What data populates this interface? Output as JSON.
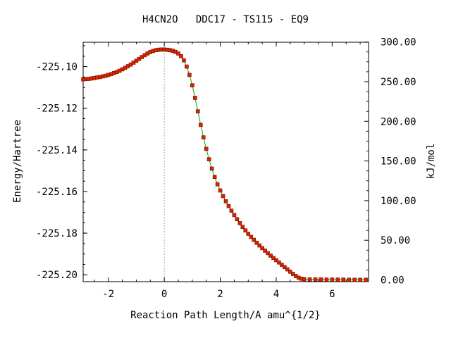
{
  "chart_data": {
    "type": "line",
    "title": "H4CN2O   DDC17 - TS115 - EQ9",
    "xlabel": "Reaction Path Length/A amu^{1/2}",
    "ylabel": "Energy/Hartree",
    "y2label": "kJ/mol",
    "xlim": [
      -2.9,
      7.3
    ],
    "ylim": [
      -225.2033,
      -225.0883
    ],
    "y2lim": [
      -2.2,
      299.7
    ],
    "x_ticks": [
      "-2",
      "0",
      "2",
      "4",
      "6"
    ],
    "x_tick_values": [
      -2,
      0,
      2,
      4,
      6
    ],
    "y_ticks": [
      "-225.10",
      "-225.12",
      "-225.14",
      "-225.16",
      "-225.18",
      "-225.20"
    ],
    "y_tick_values": [
      -225.1,
      -225.12,
      -225.14,
      -225.16,
      -225.18,
      -225.2
    ],
    "y2_ticks": [
      "300.00",
      "250.00",
      "200.00",
      "150.00",
      "100.00",
      "50.00",
      "0.00"
    ],
    "y2_tick_values": [
      300,
      250,
      200,
      150,
      100,
      50,
      0
    ],
    "ts_marker_x": 0,
    "colors": {
      "line": "#00aa00",
      "marker": "#dd2200",
      "marker_edge": "#661100",
      "ts_line": "#aaaaaa"
    },
    "series": [
      {
        "x": [
          -2.9,
          -2.8,
          -2.7,
          -2.6,
          -2.5,
          -2.4,
          -2.3,
          -2.2,
          -2.1,
          -2.0,
          -1.9,
          -1.8,
          -1.7,
          -1.6,
          -1.5,
          -1.4,
          -1.3,
          -1.2,
          -1.1,
          -1.0,
          -0.9,
          -0.8,
          -0.7,
          -0.6,
          -0.5,
          -0.4,
          -0.3,
          -0.2,
          -0.1,
          0.0,
          0.1,
          0.2,
          0.3,
          0.4,
          0.5,
          0.6,
          0.7,
          0.8,
          0.9,
          1.0,
          1.1,
          1.2,
          1.3,
          1.4,
          1.5,
          1.6,
          1.7,
          1.8,
          1.9,
          2.0,
          2.1,
          2.2,
          2.3,
          2.4,
          2.5,
          2.6,
          2.7,
          2.8,
          2.9,
          3.0,
          3.1,
          3.2,
          3.3,
          3.4,
          3.5,
          3.6,
          3.7,
          3.8,
          3.9,
          4.0,
          4.1,
          4.2,
          4.3,
          4.4,
          4.5,
          4.6,
          4.7,
          4.8,
          4.9,
          5.0,
          5.2,
          5.4,
          5.6,
          5.8,
          6.0,
          6.2,
          6.4,
          6.6,
          6.8,
          7.0,
          7.2
        ],
        "y": [
          -225.1061,
          -225.106,
          -225.1059,
          -225.1057,
          -225.1055,
          -225.1052,
          -225.105,
          -225.1047,
          -225.1044,
          -225.104,
          -225.1036,
          -225.1031,
          -225.1026,
          -225.102,
          -225.1013,
          -225.1006,
          -225.0998,
          -225.099,
          -225.0981,
          -225.0972,
          -225.0963,
          -225.0954,
          -225.0945,
          -225.0937,
          -225.093,
          -225.0925,
          -225.0921,
          -225.0919,
          -225.0918,
          -225.0918,
          -225.0919,
          -225.0921,
          -225.0924,
          -225.0929,
          -225.0937,
          -225.095,
          -225.097,
          -225.1,
          -225.104,
          -225.109,
          -225.115,
          -225.1215,
          -225.128,
          -225.134,
          -225.1395,
          -225.1445,
          -225.149,
          -225.153,
          -225.1565,
          -225.1595,
          -225.1622,
          -225.1647,
          -225.167,
          -225.1692,
          -225.1713,
          -225.1733,
          -225.1752,
          -225.177,
          -225.1787,
          -225.1803,
          -225.1818,
          -225.1832,
          -225.1846,
          -225.1859,
          -225.1872,
          -225.1884,
          -225.1896,
          -225.1908,
          -225.1919,
          -225.193,
          -225.1941,
          -225.1952,
          -225.1963,
          -225.1974,
          -225.1985,
          -225.1996,
          -225.2006,
          -225.2014,
          -225.2019,
          -225.2021,
          -225.2022,
          -225.2022,
          -225.2022,
          -225.2023,
          -225.2023,
          -225.2023,
          -225.2023,
          -225.2024,
          -225.2024,
          -225.2024,
          -225.2024
        ]
      }
    ]
  }
}
